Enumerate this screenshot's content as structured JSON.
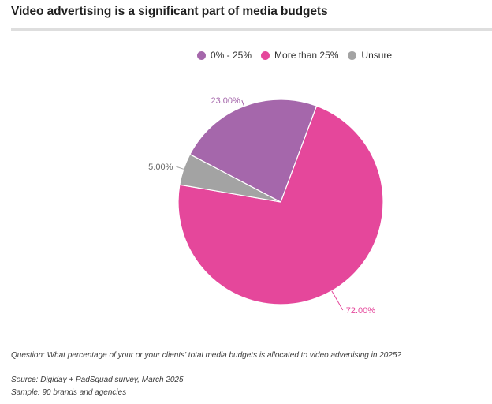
{
  "title": "Video advertising is a significant part of media budgets",
  "chart_data": {
    "type": "pie",
    "slices": [
      {
        "label": "0% - 25%",
        "value": 23,
        "value_label": "23.00%",
        "color": "#a567ab"
      },
      {
        "label": "More than 25%",
        "value": 72,
        "value_label": "72.00%",
        "color": "#e5479b"
      },
      {
        "label": "Unsure",
        "value": 5,
        "value_label": "5.00%",
        "color": "#a3a3a3"
      }
    ],
    "legend_position": "top"
  },
  "footer": {
    "question": "Question: What percentage of your or your clients' total media budgets is allocated to video advertising in 2025?",
    "source": "Source: Digiday + PadSquad survey, March 2025",
    "sample": "Sample: 90 brands and agencies"
  }
}
